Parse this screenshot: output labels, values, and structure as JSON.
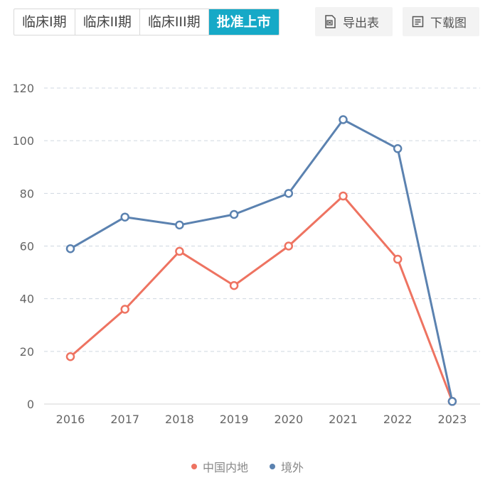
{
  "tabs": [
    {
      "label": "临床I期",
      "active": false
    },
    {
      "label": "临床II期",
      "active": false
    },
    {
      "label": "临床III期",
      "active": false
    },
    {
      "label": "批准上市",
      "active": true
    }
  ],
  "toolbar": {
    "export_label": "导出表",
    "export_icon": "export-table-icon",
    "download_label": "下载图",
    "download_icon": "download-chart-icon"
  },
  "colors": {
    "accent": "#16a9c7",
    "series_domestic": "#ee7361",
    "series_overseas": "#5b82b0",
    "grid": "#cfd7e0",
    "axis_text": "#666666"
  },
  "chart_data": {
    "type": "line",
    "categories": [
      "2016",
      "2017",
      "2018",
      "2019",
      "2020",
      "2021",
      "2022",
      "2023"
    ],
    "series": [
      {
        "name": "中国内地",
        "values": [
          18,
          36,
          58,
          45,
          60,
          79,
          55,
          1
        ]
      },
      {
        "name": "境外",
        "values": [
          59,
          71,
          68,
          72,
          80,
          108,
          97,
          1
        ]
      }
    ],
    "ylim": [
      0,
      120
    ],
    "yticks": [
      0,
      20,
      40,
      60,
      80,
      100,
      120
    ],
    "grid": true,
    "legend_position": "bottom-center",
    "title": "",
    "xlabel": "",
    "ylabel": ""
  }
}
